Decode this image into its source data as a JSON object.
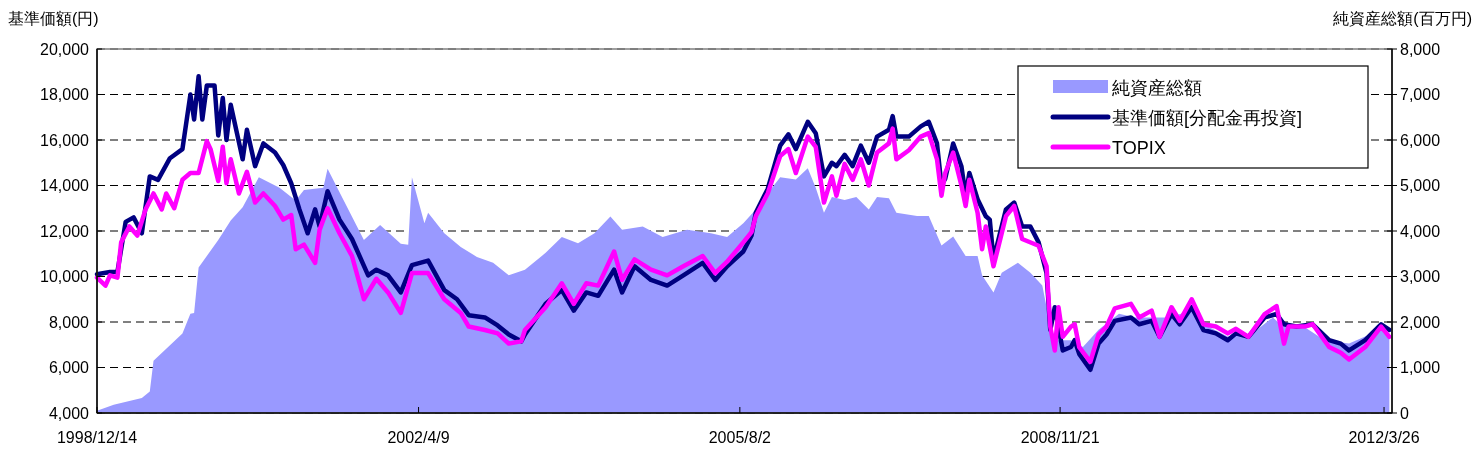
{
  "chart_data": {
    "type": "line",
    "ylabel": "基準価額(円)",
    "y2label": "純資産総額(百万円)",
    "xlim": [
      "1998-12-14",
      "2012-04-25"
    ],
    "xticks": [
      {
        "value": "1998-12-14",
        "label": "1998/12/14"
      },
      {
        "value": "2002-04-09",
        "label": "2002/4/9"
      },
      {
        "value": "2005-08-02",
        "label": "2005/8/2"
      },
      {
        "value": "2008-11-21",
        "label": "2008/11/21"
      },
      {
        "value": "2012-03-26",
        "label": "2012/3/26"
      }
    ],
    "ylim": [
      4000,
      20000
    ],
    "yticks": [
      {
        "value": 4000,
        "label": "4,000"
      },
      {
        "value": 6000,
        "label": "6,000"
      },
      {
        "value": 8000,
        "label": "8,000"
      },
      {
        "value": 10000,
        "label": "10,000"
      },
      {
        "value": 12000,
        "label": "12,000"
      },
      {
        "value": 14000,
        "label": "14,000"
      },
      {
        "value": 16000,
        "label": "16,000"
      },
      {
        "value": 18000,
        "label": "18,000"
      },
      {
        "value": 20000,
        "label": "20,000"
      }
    ],
    "y2lim": [
      0,
      8000
    ],
    "y2ticks": [
      0,
      {
        "value": 1000,
        "label": "1,000"
      },
      {
        "value": 2000,
        "label": "2,000"
      },
      {
        "value": 3000,
        "label": "3,000"
      },
      {
        "value": 4000,
        "label": "4,000"
      },
      {
        "value": 5000,
        "label": "5,000"
      },
      {
        "value": 6000,
        "label": "6,000"
      },
      {
        "value": 7000,
        "label": "7,000"
      },
      {
        "value": 8000,
        "label": "8,000"
      }
    ],
    "grid": "y",
    "legend": "top right",
    "series": [
      {
        "name": "純資産総額",
        "type": "area",
        "axis": "y2",
        "color": "#9999ff",
        "x": [
          "1998-12-14",
          "1999-02-15",
          "1999-06-01",
          "1999-07-01",
          "1999-07-15",
          "1999-11-01",
          "1999-12-01",
          "1999-12-15",
          "2000-01-01",
          "2000-03-15",
          "2000-05-01",
          "2000-06-15",
          "2000-08-15",
          "2000-11-01",
          "2001-01-01",
          "2001-02-01",
          "2001-04-15",
          "2001-05-01",
          "2001-07-01",
          "2001-09-15",
          "2001-11-15",
          "2002-02-01",
          "2002-03-01",
          "2002-03-15",
          "2002-05-01",
          "2002-05-15",
          "2002-07-15",
          "2002-09-15",
          "2002-11-15",
          "2003-01-15",
          "2003-03-15",
          "2003-05-15",
          "2003-08-01",
          "2003-10-01",
          "2003-12-01",
          "2004-02-01",
          "2004-04-01",
          "2004-05-15",
          "2004-08-01",
          "2004-10-15",
          "2005-01-15",
          "2005-04-15",
          "2005-06-15",
          "2005-08-15",
          "2005-10-01",
          "2005-11-15",
          "2006-01-01",
          "2006-03-01",
          "2006-04-15",
          "2006-05-15",
          "2006-06-15",
          "2006-07-15",
          "2006-09-01",
          "2006-10-15",
          "2006-12-01",
          "2007-01-01",
          "2007-02-15",
          "2007-03-15",
          "2007-06-01",
          "2007-07-15",
          "2007-09-01",
          "2007-10-15",
          "2007-12-01",
          "2008-01-15",
          "2008-02-01",
          "2008-03-15",
          "2008-04-15",
          "2008-06-15",
          "2008-08-01",
          "2008-09-15",
          "2008-10-01",
          "2008-11-01",
          "2009-01-01",
          "2009-02-15",
          "2009-04-15",
          "2009-07-01",
          "2009-09-01",
          "2010-01-01",
          "2010-04-01",
          "2010-06-01",
          "2010-08-15",
          "2010-11-15",
          "2011-02-01",
          "2011-03-01",
          "2011-05-15",
          "2011-08-15",
          "2011-11-15",
          "2012-01-15",
          "2012-03-15",
          "2012-04-15"
        ],
        "values": [
          50,
          180,
          330,
          470,
          1150,
          1750,
          2180,
          2200,
          3200,
          3800,
          4230,
          4520,
          5180,
          4950,
          4670,
          4900,
          4950,
          5370,
          4670,
          3800,
          4130,
          3720,
          3700,
          5180,
          4170,
          4400,
          3950,
          3650,
          3430,
          3300,
          3030,
          3150,
          3520,
          3870,
          3730,
          3950,
          4320,
          4030,
          4100,
          3870,
          4030,
          3950,
          3870,
          4170,
          4470,
          4830,
          5180,
          5130,
          5380,
          4950,
          4400,
          4750,
          4680,
          4750,
          4470,
          4750,
          4720,
          4400,
          4330,
          4330,
          3680,
          3880,
          3450,
          3450,
          3030,
          2650,
          3080,
          3300,
          3080,
          2800,
          2330,
          1600,
          1600,
          1450,
          1830,
          2180,
          2100,
          2100,
          2250,
          1900,
          1680,
          1750,
          2100,
          1950,
          1950,
          1600,
          1530,
          1680,
          1830,
          1750
        ]
      },
      {
        "name": "基準価額[分配金再投資]",
        "color": "#000080",
        "x": [
          "1998-12-14",
          "1999-02-01",
          "1999-03-01",
          "1999-04-01",
          "1999-05-01",
          "1999-06-01",
          "1999-07-01",
          "1999-08-01",
          "1999-09-15",
          "1999-11-01",
          "1999-12-01",
          "1999-12-15",
          "2000-01-01",
          "2000-01-15",
          "2000-02-01",
          "2000-03-01",
          "2000-03-15",
          "2000-04-01",
          "2000-04-15",
          "2000-05-01",
          "2000-06-15",
          "2000-07-01",
          "2000-08-01",
          "2000-09-01",
          "2000-10-15",
          "2000-11-15",
          "2000-12-15",
          "2001-01-15",
          "2001-02-15",
          "2001-03-15",
          "2001-04-01",
          "2001-05-01",
          "2001-06-15",
          "2001-08-01",
          "2001-10-01",
          "2001-11-01",
          "2001-12-15",
          "2002-02-01",
          "2002-03-15",
          "2002-05-15",
          "2002-07-15",
          "2002-09-01",
          "2002-10-15",
          "2002-12-15",
          "2003-02-01",
          "2003-03-15",
          "2003-05-01",
          "2003-05-15",
          "2003-08-01",
          "2003-10-01",
          "2003-11-15",
          "2004-01-01",
          "2004-02-15",
          "2004-04-15",
          "2004-05-15",
          "2004-07-01",
          "2004-09-01",
          "2004-11-01",
          "2005-01-01",
          "2005-03-15",
          "2005-05-01",
          "2005-06-15",
          "2005-08-15",
          "2005-09-15",
          "2005-10-01",
          "2005-11-15",
          "2006-01-01",
          "2006-02-01",
          "2006-03-01",
          "2006-04-15",
          "2006-05-15",
          "2006-06-15",
          "2006-07-15",
          "2006-08-01",
          "2006-09-01",
          "2006-10-01",
          "2006-11-01",
          "2006-12-01",
          "2007-01-01",
          "2007-02-15",
          "2007-03-01",
          "2007-03-15",
          "2007-05-01",
          "2007-06-15",
          "2007-07-15",
          "2007-08-15",
          "2007-09-01",
          "2007-09-15",
          "2007-10-15",
          "2007-11-15",
          "2007-12-01",
          "2007-12-15",
          "2008-01-15",
          "2008-02-15",
          "2008-03-01",
          "2008-03-15",
          "2008-05-01",
          "2008-06-01",
          "2008-07-01",
          "2008-08-01",
          "2008-09-01",
          "2008-10-01",
          "2008-10-15",
          "2008-11-01",
          "2008-12-01",
          "2009-01-01",
          "2009-01-15",
          "2009-02-01",
          "2009-03-15",
          "2009-04-15",
          "2009-05-15",
          "2009-06-15",
          "2009-08-15",
          "2009-09-15",
          "2009-11-01",
          "2009-12-01",
          "2010-01-15",
          "2010-02-15",
          "2010-04-01",
          "2010-05-15",
          "2010-07-01",
          "2010-08-15",
          "2010-09-15",
          "2010-11-01",
          "2011-01-01",
          "2011-02-15",
          "2011-03-15",
          "2011-05-01",
          "2011-07-01",
          "2011-09-01",
          "2011-10-15",
          "2011-11-15",
          "2012-01-15",
          "2012-03-15",
          "2012-04-15"
        ],
        "values": [
          10100,
          10200,
          10200,
          12400,
          12600,
          11900,
          14400,
          14250,
          15200,
          15600,
          18000,
          16900,
          18800,
          16900,
          18400,
          18400,
          16200,
          17850,
          16000,
          17550,
          15150,
          16450,
          14850,
          15850,
          15450,
          14900,
          14100,
          12950,
          11900,
          12950,
          12200,
          13750,
          12500,
          11650,
          10050,
          10300,
          10050,
          9300,
          10500,
          10700,
          9400,
          9000,
          8300,
          8200,
          7850,
          7450,
          7150,
          7450,
          8800,
          9400,
          8500,
          9300,
          9150,
          10300,
          9300,
          10450,
          9850,
          9600,
          10050,
          10600,
          9850,
          10450,
          11100,
          11800,
          12800,
          13850,
          15750,
          16250,
          15600,
          16800,
          16300,
          14400,
          15000,
          14850,
          15350,
          14850,
          15750,
          15000,
          16150,
          16450,
          17050,
          16150,
          16150,
          16600,
          16800,
          15850,
          14000,
          14300,
          15850,
          14850,
          13550,
          14550,
          13400,
          12650,
          12500,
          10750,
          12950,
          13250,
          12200,
          12200,
          11500,
          10150,
          7650,
          8650,
          6750,
          6900,
          7200,
          6600,
          5900,
          7050,
          7450,
          8050,
          8200,
          7900,
          8050,
          7350,
          8350,
          7900,
          8650,
          7650,
          7500,
          7200,
          7500,
          7350,
          8200,
          8350,
          7900,
          7800,
          7900,
          7200,
          7050,
          6750,
          7200,
          7900,
          7650
        ]
      },
      {
        "name": "TOPIX",
        "color": "#ff00ff",
        "x": [
          "1998-12-14",
          "1999-01-15",
          "1999-02-01",
          "1999-03-01",
          "1999-03-15",
          "1999-04-15",
          "1999-05-15",
          "1999-06-15",
          "1999-07-15",
          "1999-08-15",
          "1999-09-01",
          "1999-10-01",
          "1999-11-01",
          "1999-12-01",
          "2000-01-01",
          "2000-02-01",
          "2000-02-15",
          "2000-03-15",
          "2000-04-01",
          "2000-04-15",
          "2000-05-01",
          "2000-06-01",
          "2000-07-01",
          "2000-08-01",
          "2000-09-01",
          "2000-10-15",
          "2000-11-15",
          "2000-12-15",
          "2001-01-01",
          "2001-02-01",
          "2001-03-15",
          "2001-04-01",
          "2001-05-01",
          "2001-06-15",
          "2001-08-01",
          "2001-09-15",
          "2001-11-01",
          "2001-12-15",
          "2002-02-01",
          "2002-03-15",
          "2002-05-15",
          "2002-07-15",
          "2002-09-15",
          "2002-10-15",
          "2002-12-15",
          "2003-02-01",
          "2003-03-15",
          "2003-05-01",
          "2003-05-15",
          "2003-08-01",
          "2003-10-01",
          "2003-11-15",
          "2004-01-01",
          "2004-02-15",
          "2004-04-15",
          "2004-05-15",
          "2004-07-01",
          "2004-09-01",
          "2004-11-01",
          "2005-01-01",
          "2005-03-15",
          "2005-05-01",
          "2005-06-15",
          "2005-08-15",
          "2005-09-15",
          "2005-10-01",
          "2005-11-15",
          "2006-01-01",
          "2006-02-01",
          "2006-03-01",
          "2006-04-15",
          "2006-05-15",
          "2006-06-15",
          "2006-07-15",
          "2006-08-01",
          "2006-09-01",
          "2006-10-01",
          "2006-11-01",
          "2006-12-01",
          "2007-01-01",
          "2007-02-15",
          "2007-03-01",
          "2007-03-15",
          "2007-05-01",
          "2007-06-15",
          "2007-07-15",
          "2007-08-15",
          "2007-09-01",
          "2007-09-15",
          "2007-10-15",
          "2007-11-15",
          "2007-12-01",
          "2007-12-15",
          "2008-01-15",
          "2008-02-01",
          "2008-02-15",
          "2008-03-15",
          "2008-05-01",
          "2008-06-01",
          "2008-07-01",
          "2008-09-01",
          "2008-10-01",
          "2008-10-15",
          "2008-11-01",
          "2008-11-15",
          "2008-12-01",
          "2009-01-01",
          "2009-01-15",
          "2009-02-01",
          "2009-03-15",
          "2009-04-15",
          "2009-05-15",
          "2009-06-15",
          "2009-08-15",
          "2009-09-15",
          "2009-11-01",
          "2009-12-01",
          "2010-01-15",
          "2010-02-15",
          "2010-04-01",
          "2010-05-15",
          "2010-07-01",
          "2010-08-15",
          "2010-09-15",
          "2010-11-01",
          "2011-01-01",
          "2011-02-15",
          "2011-03-15",
          "2011-04-01",
          "2011-06-01",
          "2011-07-01",
          "2011-09-01",
          "2011-10-15",
          "2011-11-15",
          "2012-01-15",
          "2012-03-15",
          "2012-04-15"
        ],
        "values": [
          9950,
          9600,
          10050,
          9950,
          11500,
          12200,
          11800,
          12950,
          13650,
          12950,
          13650,
          13000,
          14250,
          14550,
          14550,
          15950,
          15600,
          14200,
          15700,
          14100,
          15150,
          13650,
          14600,
          13250,
          13650,
          13100,
          12500,
          12700,
          11200,
          11400,
          10600,
          12050,
          13000,
          11900,
          10900,
          9000,
          9900,
          9300,
          8400,
          10150,
          10150,
          9000,
          8400,
          7800,
          7650,
          7500,
          7050,
          7150,
          7650,
          8650,
          9700,
          8800,
          9700,
          9600,
          11100,
          9850,
          10750,
          10300,
          10050,
          10450,
          10900,
          10150,
          10650,
          11500,
          11950,
          12650,
          13650,
          15300,
          15600,
          14550,
          16150,
          15700,
          13250,
          14400,
          13550,
          14950,
          14250,
          15150,
          14000,
          15450,
          15850,
          16500,
          15150,
          15550,
          16150,
          16300,
          15150,
          13550,
          14550,
          15450,
          14000,
          13100,
          14250,
          12800,
          11200,
          12200,
          10450,
          12650,
          13100,
          11650,
          11350,
          10450,
          7800,
          6750,
          8650,
          7350,
          7800,
          7900,
          6900,
          6250,
          7450,
          7800,
          8600,
          8800,
          8200,
          8500,
          7350,
          8650,
          8050,
          9000,
          7900,
          7800,
          7500,
          7700,
          7350,
          8350,
          8700,
          7050,
          7800,
          7800,
          7900,
          6900,
          6650,
          6350,
          6900,
          7800,
          7350
        ]
      }
    ]
  }
}
